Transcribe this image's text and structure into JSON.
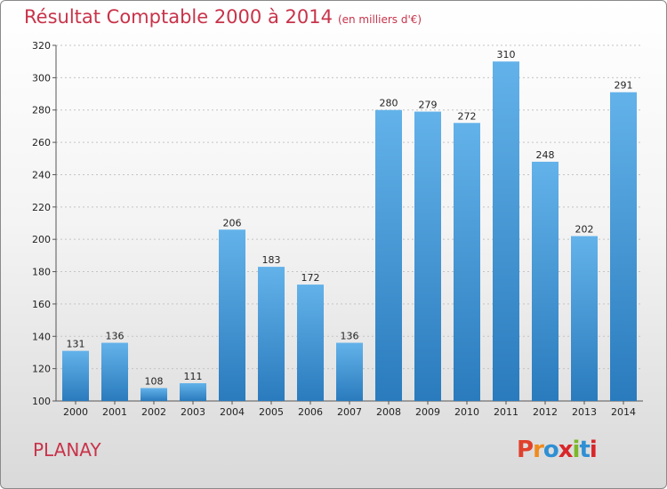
{
  "title": "Résultat Comptable 2000 à 2014",
  "subtitle": "(en milliers d'€)",
  "commune": "PLANAY",
  "logo": {
    "text": "Proxiti",
    "colors": [
      "#e0402b",
      "#f08a1c",
      "#2f8fd4",
      "#d8262a",
      "#7ab829",
      "#2f8fd4",
      "#d8262a"
    ]
  },
  "chart_data": {
    "type": "bar",
    "categories": [
      "2000",
      "2001",
      "2002",
      "2003",
      "2004",
      "2005",
      "2006",
      "2007",
      "2008",
      "2009",
      "2010",
      "2011",
      "2012",
      "2013",
      "2014"
    ],
    "values": [
      131,
      136,
      108,
      111,
      206,
      183,
      172,
      136,
      280,
      279,
      272,
      310,
      248,
      202,
      291
    ],
    "ylim": [
      100,
      320
    ],
    "yticks": [
      100,
      120,
      140,
      160,
      180,
      200,
      220,
      240,
      260,
      280,
      300,
      320
    ],
    "grid": "horizontal-dashed",
    "bar_color_top": "#63b2ea",
    "bar_color_bottom": "#2a7bbd"
  }
}
